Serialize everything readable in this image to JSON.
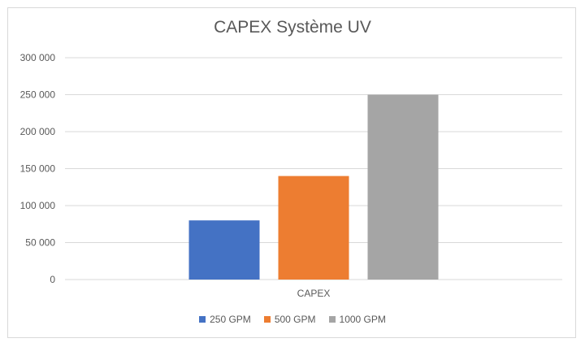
{
  "chart_data": {
    "type": "bar",
    "title": "CAPEX Système UV",
    "categories": [
      "CAPEX"
    ],
    "series": [
      {
        "name": "250 GPM",
        "values": [
          80000
        ],
        "color": "#4472c4"
      },
      {
        "name": "500 GPM",
        "values": [
          140000
        ],
        "color": "#ed7d31"
      },
      {
        "name": "1000 GPM",
        "values": [
          250000
        ],
        "color": "#a5a5a5"
      }
    ],
    "ylim": [
      0,
      300000
    ],
    "yticks": [
      "0",
      "50 000",
      "100 000",
      "150 000",
      "200 000",
      "250 000",
      "300 000"
    ],
    "grid": true,
    "legend": "bottom"
  }
}
